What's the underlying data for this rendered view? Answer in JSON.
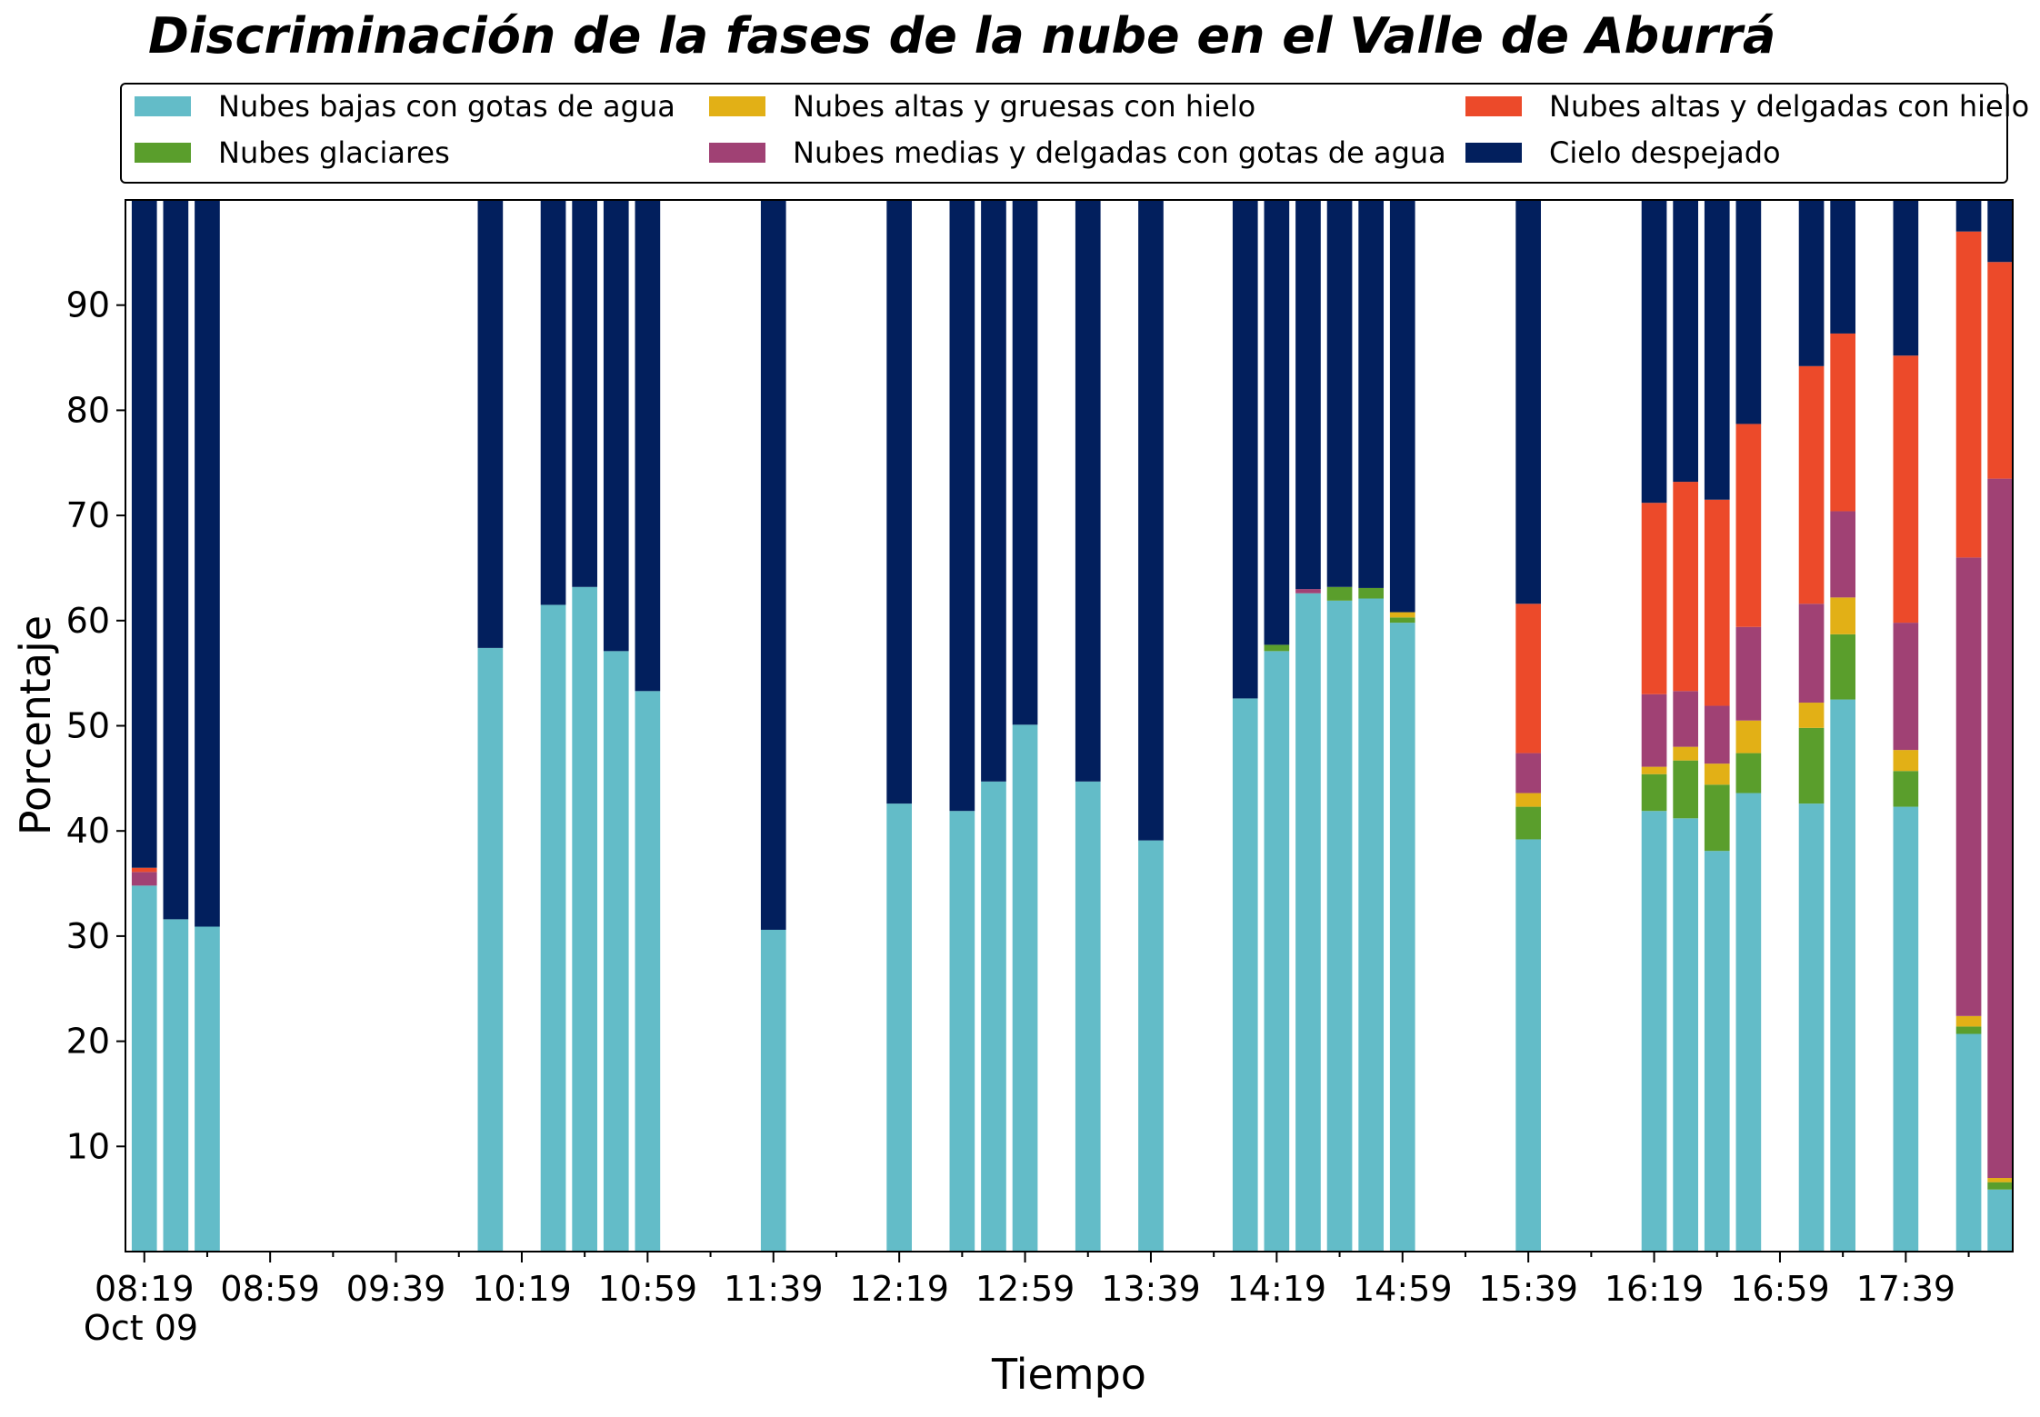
{
  "chart_data": {
    "type": "bar",
    "stacked": true,
    "title": "Discriminación de la fases de la nube en el Valle de Aburrá",
    "xlabel": "Tiempo",
    "ylabel": "Porcentaje",
    "ylim": [
      0,
      100
    ],
    "yticks": [
      10,
      20,
      30,
      40,
      50,
      60,
      70,
      80,
      90
    ],
    "xticks": [
      "08:19",
      "08:59",
      "09:39",
      "10:19",
      "10:59",
      "11:39",
      "12:19",
      "12:59",
      "13:39",
      "14:19",
      "14:59",
      "15:39",
      "16:19",
      "16:59",
      "17:39"
    ],
    "x_date_label": "Oct 09",
    "x_range_minutes": [
      "08:13",
      "18:13"
    ],
    "grid": false,
    "legend_position": "top",
    "categories": [
      "08:19",
      "08:29",
      "08:39",
      "10:09",
      "10:29",
      "10:39",
      "10:49",
      "10:59",
      "11:39",
      "12:19",
      "12:39",
      "12:49",
      "12:59",
      "13:19",
      "13:39",
      "14:09",
      "14:19",
      "14:29",
      "14:39",
      "14:49",
      "14:59",
      "15:39",
      "16:19",
      "16:29",
      "16:39",
      "16:49",
      "17:09",
      "17:19",
      "17:39",
      "17:59",
      "18:09"
    ],
    "series": [
      {
        "name": "Nubes bajas con gotas de agua",
        "color": "#63bcc8",
        "values": [
          34.8,
          31.6,
          30.9,
          57.4,
          61.5,
          63.2,
          57.1,
          53.3,
          30.6,
          42.6,
          41.9,
          44.7,
          50.1,
          44.7,
          39.1,
          52.6,
          57.1,
          62.6,
          61.9,
          62.1,
          59.8,
          39.2,
          41.9,
          41.2,
          38.1,
          43.6,
          42.6,
          52.5,
          42.3,
          20.7,
          5.9
        ]
      },
      {
        "name": "Nubes glaciares",
        "color": "#5a9e2c",
        "values": [
          0,
          0,
          0,
          0,
          0,
          0,
          0,
          0,
          0,
          0,
          0,
          0,
          0,
          0,
          0,
          0,
          0.6,
          0,
          1.3,
          1.0,
          0.5,
          3.1,
          3.5,
          5.5,
          6.3,
          3.8,
          7.2,
          6.2,
          3.4,
          0.7,
          0.7
        ]
      },
      {
        "name": "Nubes altas y gruesas con hielo",
        "color": "#e2b016",
        "values": [
          0,
          0,
          0,
          0,
          0,
          0,
          0,
          0,
          0,
          0,
          0,
          0,
          0,
          0,
          0,
          0,
          0,
          0,
          0,
          0,
          0.5,
          1.3,
          0.7,
          1.3,
          2.0,
          3.1,
          2.4,
          3.5,
          2.0,
          1.0,
          0.4
        ]
      },
      {
        "name": "Nubes medias y delgadas con gotas de agua",
        "color": "#a04174",
        "values": [
          1.3,
          0,
          0,
          0,
          0,
          0,
          0,
          0,
          0,
          0,
          0,
          0,
          0,
          0,
          0,
          0,
          0,
          0.4,
          0,
          0,
          0,
          3.8,
          6.9,
          5.3,
          5.5,
          8.9,
          9.4,
          8.2,
          12.1,
          43.6,
          66.5
        ]
      },
      {
        "name": "Nubes altas y delgadas con hielo",
        "color": "#ec4a2a",
        "values": [
          0.4,
          0,
          0,
          0,
          0,
          0,
          0,
          0,
          0,
          0,
          0,
          0,
          0,
          0,
          0,
          0,
          0,
          0,
          0,
          0,
          0,
          14.2,
          18.2,
          19.9,
          19.6,
          19.3,
          22.6,
          16.9,
          25.4,
          31.0,
          20.6
        ]
      },
      {
        "name": "Cielo despejado",
        "color": "#021f5d",
        "values": [
          63.5,
          68.4,
          69.1,
          42.6,
          38.5,
          36.8,
          42.9,
          46.7,
          69.4,
          57.4,
          58.1,
          55.3,
          49.9,
          55.3,
          60.9,
          47.4,
          42.3,
          37.0,
          36.8,
          36.9,
          39.2,
          38.4,
          28.8,
          26.8,
          28.5,
          21.3,
          15.8,
          12.7,
          14.8,
          3.0,
          5.9
        ]
      }
    ]
  }
}
